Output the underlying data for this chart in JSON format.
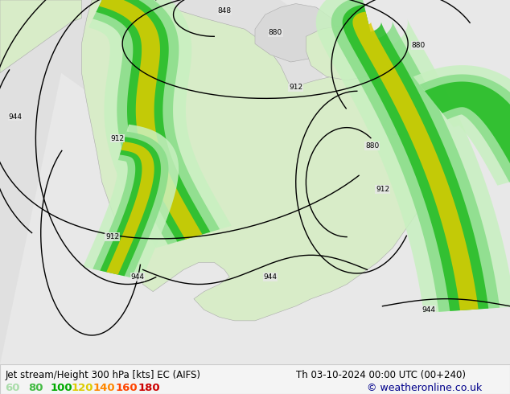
{
  "title_left": "Jet stream/Height 300 hPa [kts] EC (AIFS)",
  "title_right": "Th 03-10-2024 00:00 UTC (00+240)",
  "copyright": "© weatheronline.co.uk",
  "legend_values": [
    "60",
    "80",
    "100",
    "120",
    "140",
    "160",
    "180"
  ],
  "legend_colors": [
    "#aaddaa",
    "#44bb44",
    "#00aa00",
    "#ddcc00",
    "#ff8800",
    "#ff4400",
    "#cc0000"
  ],
  "bg_color": "#f0f0f0",
  "ocean_color": "#e8e8e8",
  "land_color": "#d8ecc8",
  "land_edge": "#aaaaaa",
  "label_color": "#000000",
  "title_fontsize": 8.5,
  "legend_fontsize": 9,
  "copyright_color": "#00008b",
  "figsize": [
    6.34,
    4.9
  ],
  "dpi": 100,
  "bar_height": 0.075,
  "jet60": "#c8f0c0",
  "jet80": "#88dd88",
  "jet100": "#22bb22",
  "jet120": "#ddcc00",
  "jet140": "#ff9900",
  "jet160": "#ff5500",
  "jet180": "#dd0000"
}
